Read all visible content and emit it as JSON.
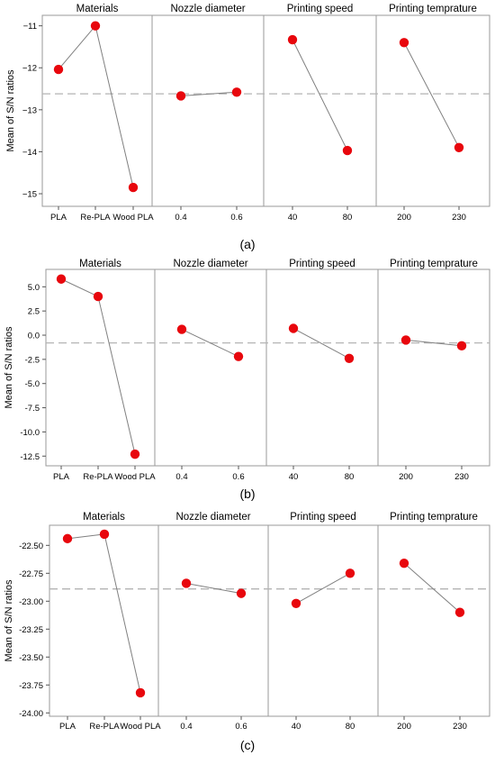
{
  "chart_data": [
    {
      "type": "line",
      "caption": "(a)",
      "ylabel": "Mean of S/N ratios",
      "ylim": [
        -15.3,
        -10.75
      ],
      "yticks": [
        -11,
        -12,
        -13,
        -14,
        -15
      ],
      "yticklabels": [
        "−11",
        "−12",
        "−13",
        "−14",
        "−15"
      ],
      "reference_line": -12.62,
      "factors": [
        {
          "name": "Materials",
          "categories": [
            "PLA",
            "Re-PLA",
            "Wood PLA"
          ],
          "values": [
            -12.04,
            -11.0,
            -14.85
          ]
        },
        {
          "name": "Nozzle diameter",
          "categories": [
            "0.4",
            "0.6"
          ],
          "values": [
            -12.67,
            -12.58
          ]
        },
        {
          "name": "Printing speed",
          "categories": [
            "40",
            "80"
          ],
          "values": [
            -11.33,
            -13.97
          ]
        },
        {
          "name": "Printing temprature",
          "categories": [
            "200",
            "230"
          ],
          "values": [
            -11.4,
            -13.9
          ]
        }
      ]
    },
    {
      "type": "line",
      "caption": "(b)",
      "ylabel": "Mean of S/N ratios",
      "ylim": [
        -13.5,
        6.8
      ],
      "yticks": [
        5,
        2.5,
        0,
        -2.5,
        -5,
        -7.5,
        -10,
        -12.5
      ],
      "yticklabels": [
        "5.0",
        "2.5",
        "0.0",
        "-2.5",
        "-5.0",
        "-7.5",
        "-10.0",
        "-12.5"
      ],
      "reference_line": -0.8,
      "factors": [
        {
          "name": "Materials",
          "categories": [
            "PLA",
            "Re-PLA",
            "Wood PLA"
          ],
          "values": [
            5.8,
            4.0,
            -12.3
          ]
        },
        {
          "name": "Nozzle diameter",
          "categories": [
            "0.4",
            "0.6"
          ],
          "values": [
            0.6,
            -2.2
          ]
        },
        {
          "name": "Printing speed",
          "categories": [
            "40",
            "80"
          ],
          "values": [
            0.7,
            -2.4
          ]
        },
        {
          "name": "Printing temprature",
          "categories": [
            "200",
            "230"
          ],
          "values": [
            -0.5,
            -1.1
          ]
        }
      ]
    },
    {
      "type": "line",
      "caption": "(c)",
      "ylabel": "Mean of S/N ratios",
      "ylim": [
        -24.03,
        -22.32
      ],
      "yticks": [
        -22.5,
        -22.75,
        -23.0,
        -23.25,
        -23.5,
        -23.75,
        -24.0
      ],
      "yticklabels": [
        "-22.50",
        "-22.75",
        "-23.00",
        "-23.25",
        "-23.50",
        "-23.75",
        "-24.00"
      ],
      "reference_line": -22.89,
      "factors": [
        {
          "name": "Materials",
          "categories": [
            "PLA",
            "Re-PLA",
            "Wood PLA"
          ],
          "values": [
            -22.44,
            -22.4,
            -23.82
          ]
        },
        {
          "name": "Nozzle diameter",
          "categories": [
            "0.4",
            "0.6"
          ],
          "values": [
            -22.84,
            -22.93
          ]
        },
        {
          "name": "Printing speed",
          "categories": [
            "40",
            "80"
          ],
          "values": [
            -23.02,
            -22.75
          ]
        },
        {
          "name": "Printing temprature",
          "categories": [
            "200",
            "230"
          ],
          "values": [
            -22.66,
            -23.1
          ]
        }
      ]
    }
  ],
  "colors": {
    "marker": "#e8070d",
    "line": "#808080",
    "reference": "#b4b4b4",
    "frame": "#9a9a9a"
  }
}
